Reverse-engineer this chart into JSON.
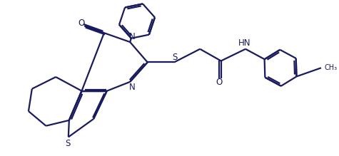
{
  "bg_color": "#ffffff",
  "line_color": "#1a1a5e",
  "text_color": "#1a1a5e",
  "bond_lw": 1.6,
  "figsize": [
    4.75,
    2.19
  ],
  "dpi": 100,
  "xlim": [
    0,
    9.5
  ],
  "ylim": [
    0,
    4.38
  ]
}
